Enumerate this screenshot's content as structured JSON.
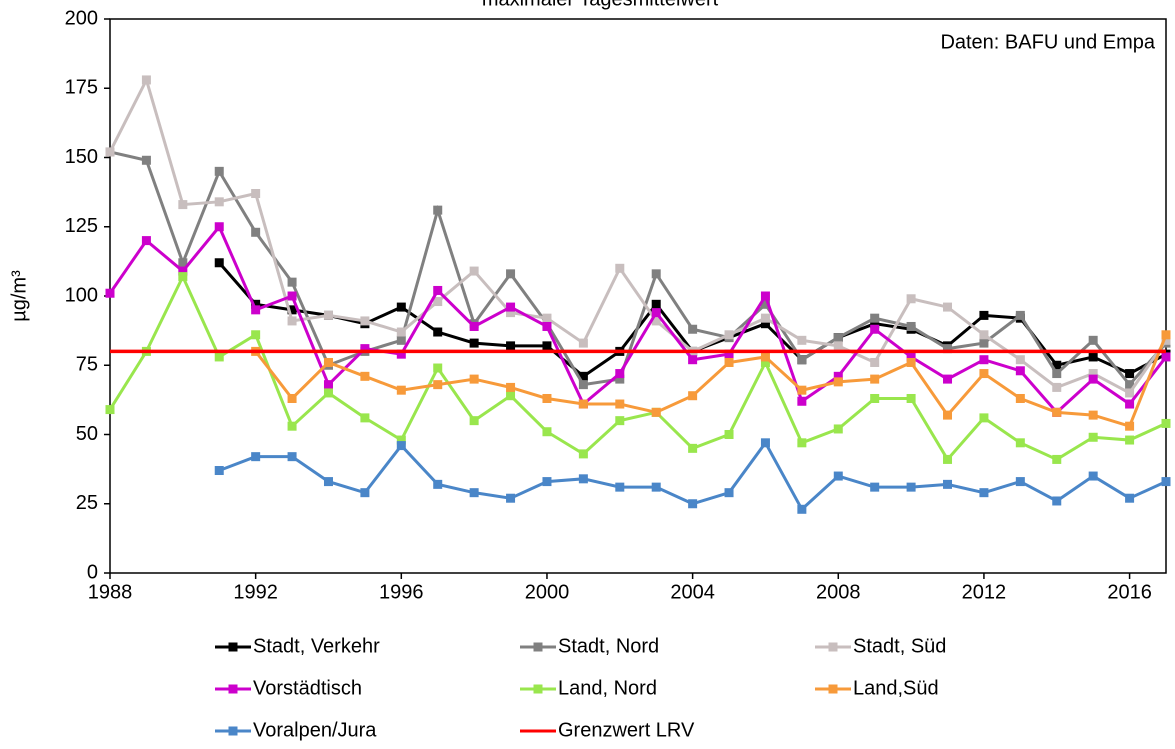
{
  "chart_data": {
    "type": "line",
    "title": "maximaler Tagesmittelwert",
    "annotation": "Daten: BAFU und Empa",
    "y_label": "µg/m³",
    "x": [
      1988,
      1989,
      1990,
      1991,
      1992,
      1993,
      1994,
      1995,
      1996,
      1997,
      1998,
      1999,
      2000,
      2001,
      2002,
      2003,
      2004,
      2005,
      2006,
      2007,
      2008,
      2009,
      2010,
      2011,
      2012,
      2013,
      2014,
      2015,
      2016,
      2017
    ],
    "xlim": [
      1988,
      2017
    ],
    "xticks": [
      1988,
      1992,
      1996,
      2000,
      2004,
      2008,
      2012,
      2016
    ],
    "ylim": [
      0,
      200
    ],
    "yticks": [
      0,
      25,
      50,
      75,
      100,
      125,
      150,
      175,
      200
    ],
    "series": [
      {
        "name": "Stadt, Verkehr",
        "color": "#000000",
        "values": [
          null,
          null,
          null,
          112,
          97,
          95,
          93,
          90,
          96,
          87,
          83,
          82,
          82,
          71,
          80,
          97,
          80,
          85,
          90,
          77,
          85,
          90,
          88,
          82,
          93,
          92,
          75,
          78,
          72,
          79
        ]
      },
      {
        "name": "Stadt, Nord",
        "color": "#808080",
        "values": [
          152,
          149,
          112,
          145,
          123,
          105,
          75,
          80,
          84,
          131,
          90,
          108,
          90,
          68,
          70,
          108,
          88,
          85,
          97,
          77,
          85,
          92,
          89,
          81,
          83,
          93,
          72,
          84,
          68,
          83
        ]
      },
      {
        "name": "Stadt, Süd",
        "color": "#c8bebe",
        "values": [
          152,
          178,
          133,
          134,
          137,
          91,
          93,
          91,
          87,
          98,
          109,
          94,
          92,
          83,
          110,
          91,
          80,
          86,
          92,
          84,
          82,
          76,
          99,
          96,
          86,
          77,
          67,
          72,
          65,
          84
        ]
      },
      {
        "name": "Vorstädtisch",
        "color": "#cc00cc",
        "values": [
          101,
          120,
          109,
          125,
          95,
          100,
          68,
          81,
          79,
          102,
          89,
          96,
          89,
          61,
          72,
          94,
          77,
          79,
          100,
          62,
          71,
          88,
          78,
          70,
          77,
          73,
          58,
          70,
          61,
          78
        ]
      },
      {
        "name": "Land, Nord",
        "color": "#99e64d",
        "values": [
          59,
          80,
          107,
          78,
          86,
          53,
          65,
          56,
          48,
          74,
          55,
          64,
          51,
          43,
          55,
          58,
          45,
          50,
          76,
          47,
          52,
          63,
          63,
          41,
          56,
          47,
          41,
          49,
          48,
          54
        ]
      },
      {
        "name": "Land,Süd",
        "color": "#f79a3a",
        "values": [
          null,
          null,
          null,
          null,
          80,
          63,
          76,
          71,
          66,
          68,
          70,
          67,
          63,
          61,
          61,
          58,
          64,
          76,
          78,
          66,
          69,
          70,
          76,
          57,
          72,
          63,
          58,
          57,
          53,
          86
        ]
      },
      {
        "name": "Voralpen/Jura",
        "color": "#4a86c8",
        "values": [
          null,
          null,
          null,
          37,
          42,
          42,
          33,
          29,
          46,
          32,
          29,
          27,
          33,
          34,
          31,
          31,
          25,
          29,
          47,
          23,
          35,
          31,
          31,
          32,
          29,
          33,
          26,
          35,
          27,
          33
        ]
      }
    ],
    "limit": {
      "name": "Grenzwert LRV",
      "color": "#ff0000",
      "value": 80
    }
  }
}
